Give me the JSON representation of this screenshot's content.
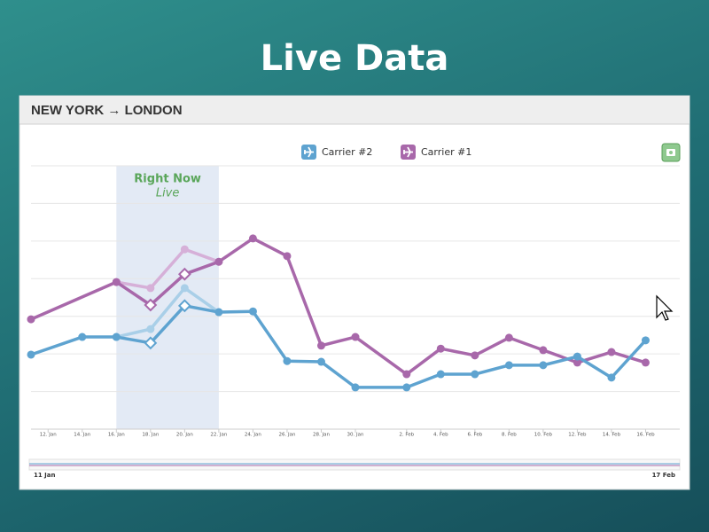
{
  "header": {
    "title": "Live Data"
  },
  "panel": {
    "title": "NEW YORK → LONDON"
  },
  "navigator": {
    "start": "11 Jan",
    "end": "17 Feb"
  },
  "chart_data": {
    "type": "line",
    "xlim": [
      11,
      49
    ],
    "ylim": [
      0,
      70
    ],
    "grid": true,
    "xticks": [
      {
        "value": 12,
        "label": "12. Jan"
      },
      {
        "value": 14,
        "label": "14. Jan"
      },
      {
        "value": 16,
        "label": "16. Jan"
      },
      {
        "value": 18,
        "label": "18. Jan"
      },
      {
        "value": 20,
        "label": "20. Jan"
      },
      {
        "value": 22,
        "label": "22. Jan"
      },
      {
        "value": 24,
        "label": "24. Jan"
      },
      {
        "value": 26,
        "label": "26. Jan"
      },
      {
        "value": 28,
        "label": "28. Jan"
      },
      {
        "value": 30,
        "label": "30. Jan"
      },
      {
        "value": 33,
        "label": "2. Feb"
      },
      {
        "value": 35,
        "label": "4. Feb"
      },
      {
        "value": 37,
        "label": "6. Feb"
      },
      {
        "value": 39,
        "label": "8. Feb"
      },
      {
        "value": 41,
        "label": "10. Feb"
      },
      {
        "value": 43,
        "label": "12. Feb"
      },
      {
        "value": 45,
        "label": "14. Feb"
      },
      {
        "value": 47,
        "label": "16. Feb"
      }
    ],
    "band": {
      "from": 16,
      "to": 22,
      "title": "Right Now",
      "subtitle": "Live"
    },
    "diamond_x": [
      18,
      20
    ],
    "series": [
      {
        "name": "Carrier #2",
        "color": "#5ea3d0",
        "live_color": "#a9cfe8",
        "x": [
          11,
          14,
          16,
          18,
          20,
          22,
          24,
          26,
          28,
          30,
          33,
          35,
          37,
          39,
          41,
          43,
          45,
          47
        ],
        "values": [
          19.8,
          24.5,
          24.5,
          22.9,
          32.8,
          31.1,
          31.3,
          18.1,
          17.9,
          11.1,
          11.1,
          14.6,
          14.6,
          17.0,
          17.0,
          19.3,
          13.7,
          23.6
        ],
        "live_x": [
          16,
          18,
          20,
          22
        ],
        "live_values": [
          24.5,
          26.6,
          37.5,
          31.1
        ]
      },
      {
        "name": "Carrier #1",
        "color": "#a868aa",
        "live_color": "#d6b0d8",
        "x": [
          11,
          16,
          18,
          20,
          22,
          24,
          26,
          28,
          30,
          33,
          35,
          37,
          39,
          41,
          43,
          45,
          47
        ],
        "values": [
          29.2,
          39.1,
          33.0,
          41.2,
          44.5,
          50.7,
          46.0,
          22.2,
          24.5,
          14.6,
          21.4,
          19.6,
          24.3,
          21.0,
          17.7,
          20.5,
          17.7
        ],
        "live_x": [
          16,
          18,
          20,
          22
        ],
        "live_values": [
          39.1,
          37.5,
          47.8,
          44.5
        ]
      }
    ]
  }
}
